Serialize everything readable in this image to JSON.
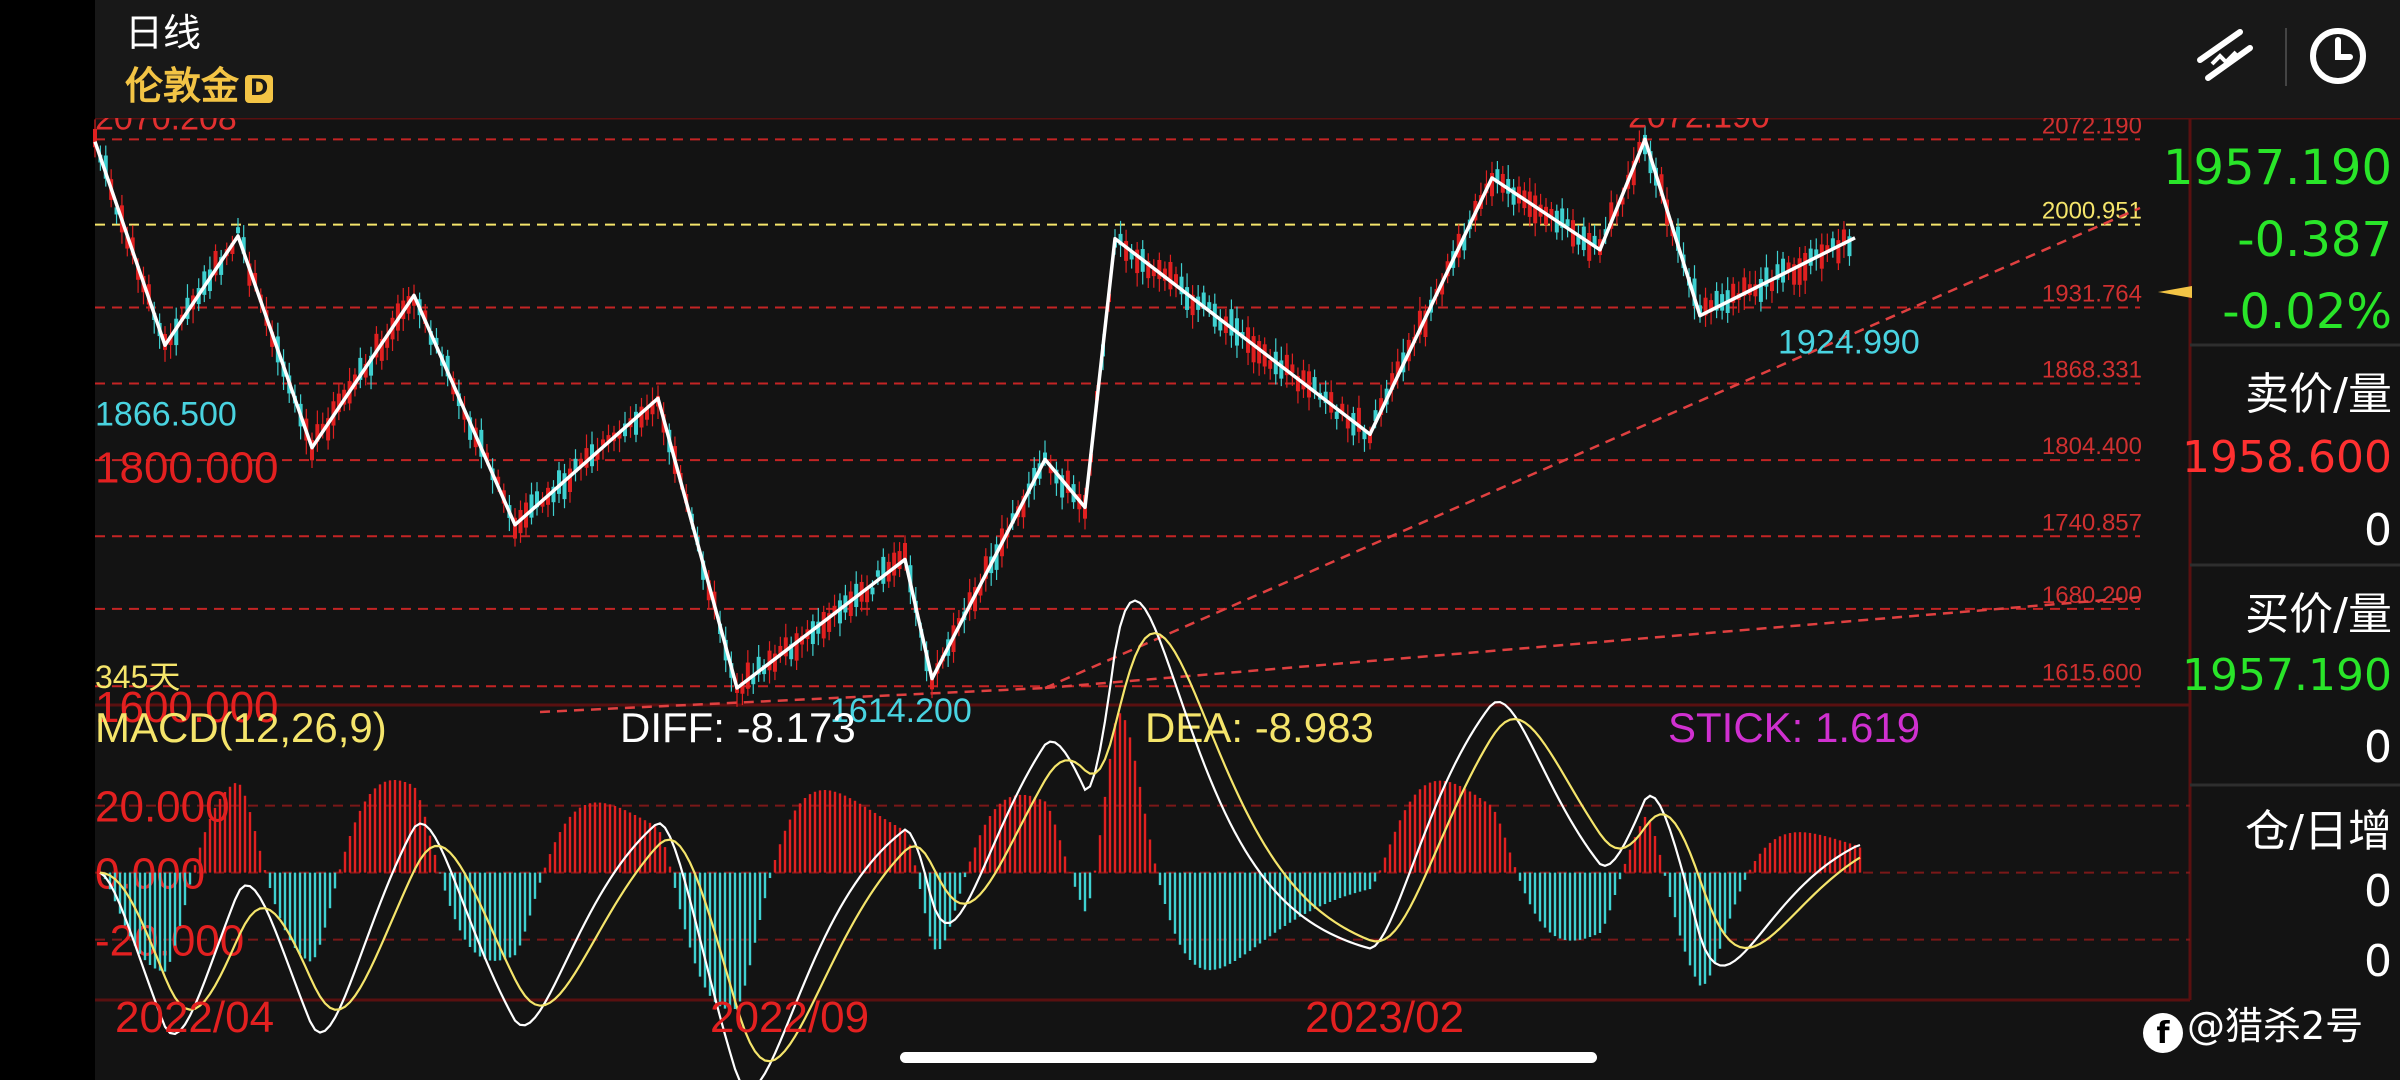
{
  "header": {
    "period": "日线",
    "instrument": "伦敦金",
    "badge": "D"
  },
  "side_panel": {
    "last_price": "1957.190",
    "change": "-0.387",
    "change_pct": "-0.02%",
    "ask_label": "卖价/量",
    "ask_price": "1958.600",
    "ask_volume": "0",
    "bid_label": "买价/量",
    "bid_price": "1957.190",
    "bid_volume": "0",
    "oi_label": "仓/日增",
    "oi_value": "0",
    "oi_change": "0"
  },
  "watermark": "@猎杀2号",
  "colors": {
    "up": "#e02020",
    "down": "#3fd1d1",
    "zigzag": "#ffffff",
    "highlight": "#f5e56b",
    "side_green": "#29e529",
    "side_red": "#ff3030"
  },
  "chart_data": [
    {
      "type": "candlestick",
      "x": [
        "2022/04",
        "2022/09",
        "2023/02"
      ],
      "ylim": [
        1600,
        2090
      ],
      "y_ticks": [
        "1800.000",
        "1600.000"
      ],
      "range_label": "345天",
      "price_levels": [
        "2072.190",
        "2000.951",
        "1931.764",
        "1868.331",
        "1804.400",
        "1740.857",
        "1680.200",
        "1615.600"
      ],
      "highlight_level": {
        "value": 2000.951
      },
      "annotations": [
        {
          "text": "2070.208",
          "value": 2070.208
        },
        {
          "text": "1866.500",
          "value": 1866.5
        },
        {
          "text": "1614.200",
          "value": 1614.2
        },
        {
          "text": "2072.190",
          "value": 2072.19
        },
        {
          "text": "1924.990",
          "value": 1924.99
        }
      ],
      "zigzag": [
        2070.2,
        1900.3,
        1991.5,
        1814.8,
        1942,
        1750.4,
        1856,
        1614.2,
        1721.5,
        1622,
        1805,
        1765,
        1989.3,
        1826,
        2040,
        1980,
        2072.2,
        1924.99,
        1990
      ]
    },
    {
      "type": "macd",
      "params": "MACD(12,26,9)",
      "diff": "DIFF: -8.173",
      "dea": "DEA: -8.983",
      "stick": "STICK: 1.619",
      "y_ticks": [
        "20.000",
        "0.000",
        "-20.000"
      ],
      "ylim": [
        -38,
        50
      ]
    }
  ]
}
